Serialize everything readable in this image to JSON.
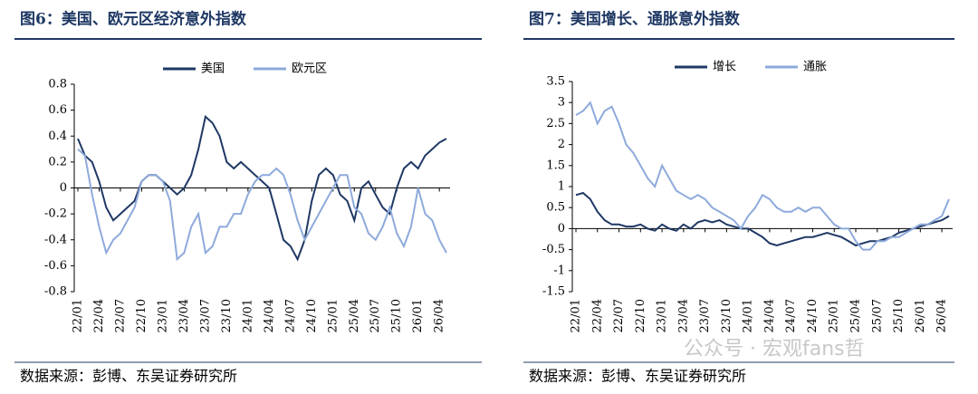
{
  "chart_data": [
    {
      "type": "line",
      "title": "图6：美国、欧元区经济意外指数",
      "source": "数据来源：彭博、东吴证券研究所",
      "legend": "top",
      "categories": [
        "22/01",
        null,
        null,
        "22/04",
        null,
        null,
        "22/07",
        null,
        null,
        "22/10",
        null,
        null,
        "23/01",
        null,
        null,
        "23/04",
        null,
        null,
        "23/07",
        null,
        null,
        "23/10",
        null,
        null,
        "24/01",
        null,
        null,
        "24/04",
        null,
        null,
        "24/07",
        null,
        null,
        "24/10",
        null,
        null,
        "25/01",
        null,
        null,
        "25/04",
        null,
        null,
        "25/07",
        null,
        null,
        "25/10",
        null,
        null,
        "26/01",
        null,
        null,
        "26/04",
        null
      ],
      "ylim": [
        -0.8,
        0.8
      ],
      "yticks": [
        0.8,
        0.6,
        0.4,
        0.2,
        0,
        -0.2,
        -0.4,
        -0.6,
        -0.8
      ],
      "series": [
        {
          "name": "美国",
          "color": "#1f3864",
          "values": [
            0.38,
            0.25,
            0.2,
            0.05,
            -0.15,
            -0.25,
            -0.2,
            -0.15,
            -0.1,
            0.05,
            0.1,
            0.1,
            0.05,
            0.0,
            -0.05,
            0.0,
            0.1,
            0.3,
            0.55,
            0.5,
            0.4,
            0.2,
            0.15,
            0.2,
            0.15,
            0.1,
            0.05,
            0.0,
            -0.2,
            -0.4,
            -0.45,
            -0.55,
            -0.4,
            -0.1,
            0.1,
            0.15,
            0.1,
            -0.05,
            -0.1,
            -0.25,
            0.0,
            0.05,
            -0.05,
            -0.15,
            -0.2,
            0.0,
            0.15,
            0.2,
            0.15,
            0.25,
            0.3,
            0.35,
            0.38
          ]
        },
        {
          "name": "欧元区",
          "color": "#8eaadb",
          "values": [
            0.3,
            0.25,
            -0.05,
            -0.3,
            -0.5,
            -0.4,
            -0.35,
            -0.25,
            -0.15,
            0.05,
            0.1,
            0.1,
            0.05,
            -0.1,
            -0.55,
            -0.5,
            -0.3,
            -0.2,
            -0.5,
            -0.45,
            -0.3,
            -0.3,
            -0.2,
            -0.2,
            -0.05,
            0.05,
            0.1,
            0.1,
            0.15,
            0.1,
            -0.05,
            -0.25,
            -0.4,
            -0.3,
            -0.2,
            -0.1,
            0.0,
            0.1,
            0.1,
            -0.15,
            -0.2,
            -0.35,
            -0.4,
            -0.3,
            -0.15,
            -0.35,
            -0.45,
            -0.3,
            0.0,
            -0.2,
            -0.25,
            -0.4,
            -0.5
          ]
        }
      ]
    },
    {
      "type": "line",
      "title": "图7：美国增长、通胀意外指数",
      "source": "数据来源：彭博、东吴证券研究所",
      "legend": "top",
      "categories": [
        "22/01",
        null,
        null,
        "22/04",
        null,
        null,
        "22/07",
        null,
        null,
        "22/10",
        null,
        null,
        "23/01",
        null,
        null,
        "23/04",
        null,
        null,
        "23/07",
        null,
        null,
        "23/10",
        null,
        null,
        "24/01",
        null,
        null,
        "24/04",
        null,
        null,
        "24/07",
        null,
        null,
        "24/10",
        null,
        null,
        "25/01",
        null,
        null,
        "25/04",
        null,
        null,
        "25/07",
        null,
        null,
        "25/10",
        null,
        null,
        "26/01",
        null,
        null,
        "26/04",
        null
      ],
      "ylim": [
        -1.5,
        3.5
      ],
      "yticks": [
        3.5,
        3,
        2.5,
        2,
        1.5,
        1,
        0.5,
        0,
        -0.5,
        -1,
        -1.5
      ],
      "series": [
        {
          "name": "增长",
          "color": "#1f3864",
          "values": [
            0.8,
            0.85,
            0.7,
            0.4,
            0.2,
            0.1,
            0.1,
            0.05,
            0.05,
            0.1,
            0.0,
            -0.05,
            0.1,
            0.0,
            -0.05,
            0.1,
            0.0,
            0.15,
            0.2,
            0.15,
            0.2,
            0.1,
            0.05,
            0.0,
            0.0,
            -0.1,
            -0.2,
            -0.35,
            -0.4,
            -0.35,
            -0.3,
            -0.25,
            -0.2,
            -0.2,
            -0.15,
            -0.1,
            -0.15,
            -0.2,
            -0.3,
            -0.4,
            -0.35,
            -0.3,
            -0.3,
            -0.25,
            -0.2,
            -0.1,
            -0.05,
            0.0,
            0.05,
            0.1,
            0.15,
            0.2,
            0.3
          ]
        },
        {
          "name": "通胀",
          "color": "#8eaadb",
          "values": [
            2.7,
            2.8,
            3.0,
            2.5,
            2.8,
            2.9,
            2.5,
            2.0,
            1.8,
            1.5,
            1.2,
            1.0,
            1.5,
            1.2,
            0.9,
            0.8,
            0.7,
            0.8,
            0.7,
            0.5,
            0.4,
            0.3,
            0.2,
            0.0,
            0.3,
            0.5,
            0.8,
            0.7,
            0.5,
            0.4,
            0.4,
            0.5,
            0.4,
            0.5,
            0.5,
            0.3,
            0.1,
            0.0,
            0.0,
            -0.3,
            -0.5,
            -0.5,
            -0.3,
            -0.3,
            -0.2,
            -0.2,
            -0.1,
            0.0,
            0.1,
            0.1,
            0.2,
            0.3,
            0.7
          ]
        }
      ]
    }
  ],
  "watermark": "公众号 · 宏观fans哲"
}
